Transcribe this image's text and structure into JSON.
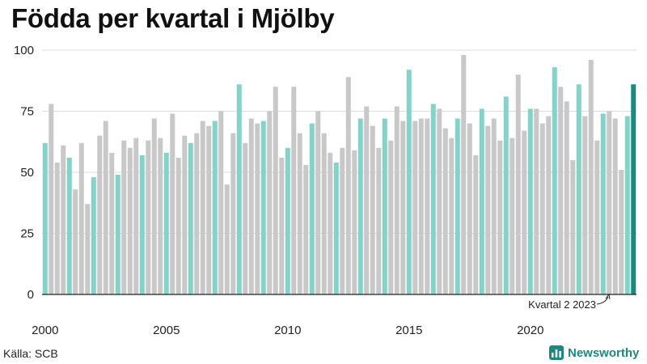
{
  "title": "Födda per kvartal i Mjölby",
  "source": "Källa: SCB",
  "brand": "Newsworthy",
  "colors": {
    "q1": "#82d4c9",
    "other": "#c8c8c8",
    "latest": "#1a8a7e",
    "grid": "#dddddd",
    "brand": "#1a8a7e"
  },
  "chart_data": {
    "type": "bar",
    "title": "Födda per kvartal i Mjölby",
    "ylim": [
      0,
      100
    ],
    "yticks": [
      0,
      25,
      50,
      75,
      100
    ],
    "xtick_labels": [
      "2000",
      "2005",
      "2010",
      "2015",
      "2020"
    ],
    "xtick_years": [
      2000,
      2005,
      2010,
      2015,
      2020
    ],
    "start_year": 2000,
    "start_quarter": 1,
    "values": [
      62,
      78,
      54,
      61,
      56,
      43,
      62,
      37,
      48,
      65,
      71,
      58,
      49,
      63,
      60,
      64,
      57,
      63,
      72,
      64,
      58,
      74,
      56,
      65,
      62,
      66,
      71,
      69,
      71,
      75,
      45,
      66,
      86,
      62,
      72,
      70,
      71,
      75,
      85,
      56,
      60,
      85,
      66,
      53,
      70,
      75,
      66,
      58,
      54,
      60,
      89,
      59,
      72,
      77,
      69,
      60,
      72,
      63,
      77,
      71,
      92,
      71,
      72,
      72,
      78,
      76,
      68,
      64,
      72,
      98,
      70,
      57,
      76,
      69,
      72,
      63,
      81,
      64,
      90,
      67,
      76,
      76,
      70,
      73,
      93,
      85,
      79,
      55,
      86,
      73,
      96,
      63,
      74,
      75,
      72,
      51,
      73,
      86
    ],
    "annotation": "Kvartal 2 2023",
    "legend": "none"
  }
}
